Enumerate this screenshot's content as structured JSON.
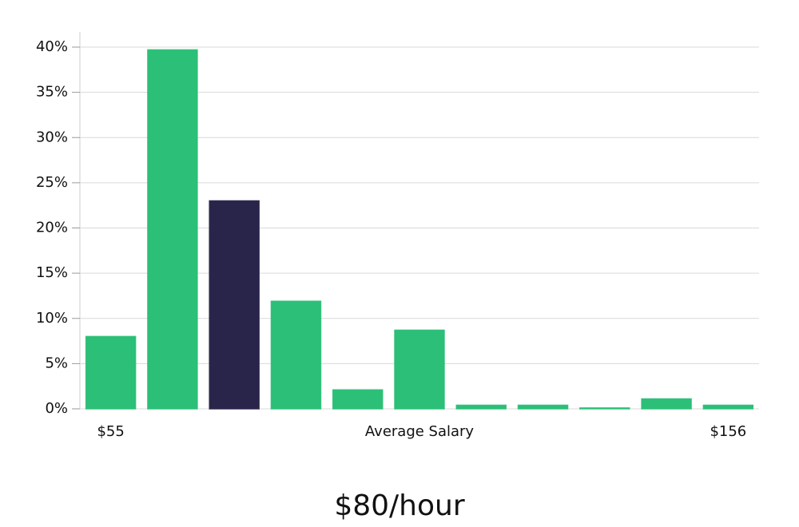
{
  "chart_data": {
    "type": "bar",
    "categories": [
      "$55",
      null,
      null,
      null,
      null,
      null,
      null,
      null,
      null,
      null,
      "$156"
    ],
    "values": [
      8,
      39.7,
      23,
      11.9,
      2.1,
      8.7,
      0.4,
      0.4,
      0.1,
      1.1,
      0.4
    ],
    "colors": [
      "#2bbf77",
      "#2bbf77",
      "#29254a",
      "#2bbf77",
      "#2bbf77",
      "#2bbf77",
      "#2bbf77",
      "#2bbf77",
      "#2bbf77",
      "#2bbf77",
      "#2bbf77"
    ],
    "xlabel": "Average Salary",
    "annotation": "$80/hour",
    "ylim": [
      0,
      40
    ],
    "yticks": [
      {
        "value": 0,
        "label": "0%"
      },
      {
        "value": 5,
        "label": "5%"
      },
      {
        "value": 10,
        "label": "10%"
      },
      {
        "value": 15,
        "label": "15%"
      },
      {
        "value": 20,
        "label": "20%"
      },
      {
        "value": 25,
        "label": "25%"
      },
      {
        "value": 30,
        "label": "30%"
      },
      {
        "value": 35,
        "label": "35%"
      },
      {
        "value": 40,
        "label": "40%"
      }
    ],
    "grid": true
  }
}
